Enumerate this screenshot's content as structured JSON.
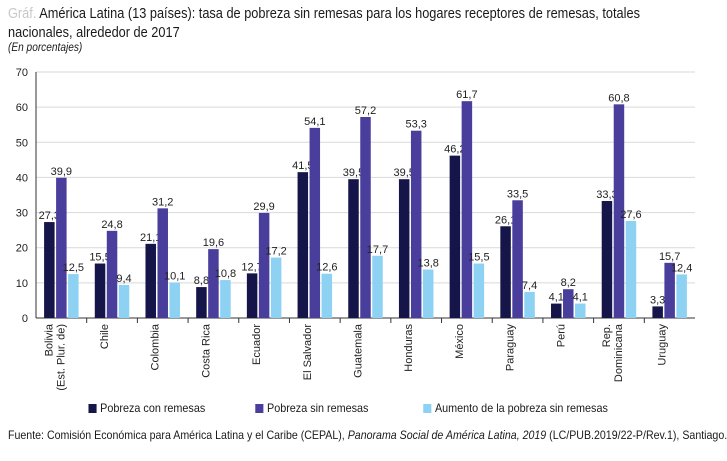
{
  "header": {
    "label": "Gráf.",
    "title": "América Latina (13 países): tasa de pobreza sin remesas para los hogares receptores de remesas, totales nacionales, alrededor de 2017",
    "subtitle": "(En porcentajes)"
  },
  "chart_data": {
    "type": "bar",
    "title": "América Latina (13 países): tasa de pobreza sin remesas para los hogares receptores de remesas, totales nacionales, alrededor de 2017",
    "ylabel": "(En porcentajes)",
    "ylim": [
      0,
      70
    ],
    "yticks": [
      0,
      10,
      20,
      30,
      40,
      50,
      60,
      70
    ],
    "grid": true,
    "legend_position": "bottom",
    "categories": [
      [
        "Bolivia",
        "(Est. Plur. de)"
      ],
      [
        "Chile"
      ],
      [
        "Colombia"
      ],
      [
        "Costa Rica"
      ],
      [
        "Ecuador"
      ],
      [
        "El Salvador"
      ],
      [
        "Guatemala"
      ],
      [
        "Honduras"
      ],
      [
        "México"
      ],
      [
        "Paraguay"
      ],
      [
        "Perú"
      ],
      [
        "Rep.",
        "Dominicana"
      ],
      [
        "Uruguay"
      ]
    ],
    "series": [
      {
        "name": "Pobreza con remesas",
        "color": "#15154a",
        "values": [
          27.3,
          15.5,
          21.1,
          8.8,
          12.7,
          41.5,
          39.5,
          39.5,
          46.2,
          26.1,
          4.1,
          33.3,
          3.3
        ]
      },
      {
        "name": "Pobreza sin remesas",
        "color": "#4a3e9c",
        "values": [
          39.9,
          24.8,
          31.2,
          19.6,
          29.9,
          54.1,
          57.2,
          53.3,
          61.7,
          33.5,
          8.2,
          60.8,
          15.7
        ]
      },
      {
        "name": "Aumento de la pobreza sin remesas",
        "color": "#8ed2f3",
        "values": [
          12.5,
          9.4,
          10.1,
          10.8,
          17.2,
          12.6,
          17.7,
          13.8,
          15.5,
          7.4,
          4.1,
          27.6,
          12.4
        ]
      }
    ]
  },
  "source": {
    "prefix": "Fuente: Comisión Económica para América Latina y el Caribe (CEPAL), ",
    "italic": "Panorama Social de América Latina, 2019",
    "suffix": " (LC/PUB.2019/22-P/Rev.1), Santiago."
  }
}
